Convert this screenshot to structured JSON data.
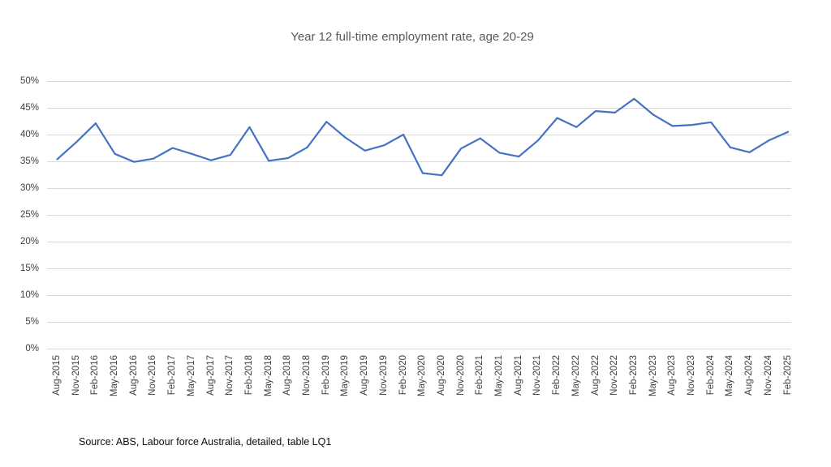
{
  "title": "Year 12 full-time employment rate, age 20-29",
  "source_note": "Source: ABS, Labour force Australia, detailed, table LQ1",
  "chart_data": {
    "type": "line",
    "title": "Year 12 full-time employment rate, age 20-29",
    "categories": [
      "Aug-2015",
      "Nov-2015",
      "Feb-2016",
      "May-2016",
      "Aug-2016",
      "Nov-2016",
      "Feb-2017",
      "May-2017",
      "Aug-2017",
      "Nov-2017",
      "Feb-2018",
      "May-2018",
      "Aug-2018",
      "Nov-2018",
      "Feb-2019",
      "May-2019",
      "Aug-2019",
      "Nov-2019",
      "Feb-2020",
      "May-2020",
      "Aug-2020",
      "Nov-2020",
      "Feb-2021",
      "May-2021",
      "Aug-2021",
      "Nov-2021",
      "Feb-2022",
      "May-2022",
      "Aug-2022",
      "Nov-2022",
      "Feb-2023",
      "May-2023",
      "Aug-2023",
      "Nov-2023",
      "Feb-2024",
      "May-2024",
      "Aug-2024",
      "Nov-2024",
      "Feb-2025"
    ],
    "values": [
      35.4,
      38.6,
      42.1,
      36.4,
      34.9,
      35.5,
      37.5,
      36.4,
      35.2,
      36.2,
      41.4,
      35.1,
      35.6,
      37.6,
      42.4,
      39.4,
      37.0,
      38.0,
      40.0,
      32.8,
      32.4,
      37.4,
      39.3,
      36.6,
      35.9,
      38.9,
      43.1,
      41.4,
      44.4,
      44.1,
      46.7,
      43.7,
      41.6,
      41.8,
      42.3,
      37.6,
      36.7,
      38.9,
      40.5
    ],
    "xlabel": "",
    "ylabel": "",
    "ylim": [
      0,
      50
    ],
    "ytick_step": 5,
    "ytick_suffix": "%",
    "grid": true,
    "legend": false,
    "line_color": "#4472C4",
    "gridline_color": "#d9d9d9",
    "title_color": "#595959",
    "tick_label_color": "#404040"
  }
}
